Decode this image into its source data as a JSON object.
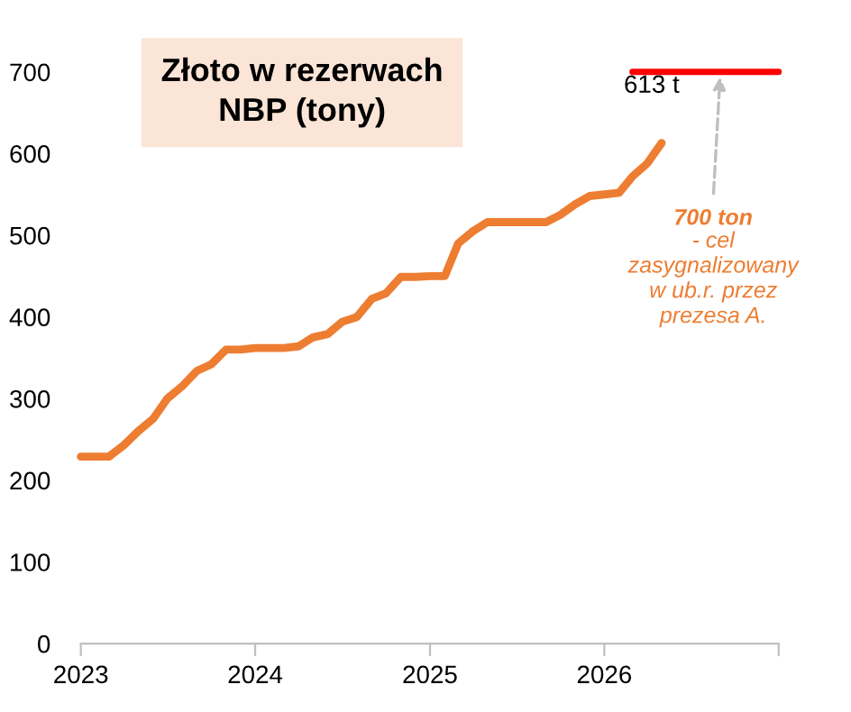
{
  "chart_data": {
    "type": "line",
    "title": "Złoto w rezerwach\nNBP (tony)",
    "x": [
      "2023-01",
      "2023-02",
      "2023-03",
      "2023-04",
      "2023-05",
      "2023-06",
      "2023-07",
      "2023-08",
      "2023-09",
      "2023-10",
      "2023-11",
      "2023-12",
      "2024-01",
      "2024-02",
      "2024-03",
      "2024-04",
      "2024-05",
      "2024-06",
      "2024-07",
      "2024-08",
      "2024-09",
      "2024-10",
      "2024-11",
      "2024-12",
      "2025-01",
      "2025-02",
      "2025-03",
      "2025-04",
      "2025-05",
      "2025-06",
      "2025-07",
      "2025-08",
      "2025-09",
      "2025-10",
      "2025-11",
      "2025-12",
      "2026-01",
      "2026-02",
      "2026-03",
      "2026-04",
      "2026-05"
    ],
    "series": [
      {
        "color": "#ed7d31",
        "values": [
          229,
          229,
          229,
          243,
          260,
          275,
          300,
          315,
          334,
          342,
          360,
          360,
          362,
          362,
          362,
          364,
          375,
          379,
          394,
          400,
          422,
          429,
          449,
          449,
          450,
          450,
          490,
          505,
          516,
          516,
          516,
          516,
          516,
          525,
          538,
          548,
          550,
          552,
          572,
          588,
          613
        ]
      },
      {
        "color": "#ff0000",
        "x": [
          "2026-03",
          "2027-01"
        ],
        "values": [
          700,
          700
        ]
      }
    ],
    "annotations": [
      {
        "text": "613 t",
        "x": "2026-05",
        "y": 613
      },
      {
        "text": "700 ton\n- cel\nzasygnalizowany\nw ub.r. przez\nprezesa A.",
        "x": "2026-09",
        "y": 700
      }
    ],
    "xlim": [
      "2023-01",
      "2027-01"
    ],
    "xticks": [
      {
        "value": "2023-01",
        "label": "2023"
      },
      {
        "value": "2024-01",
        "label": "2024"
      },
      {
        "value": "2025-01",
        "label": "2025"
      },
      {
        "value": "2026-01",
        "label": "2026"
      },
      {
        "value": "2027-01",
        "label": null
      }
    ],
    "ylim": [
      0,
      700
    ],
    "yticks": [
      0,
      100,
      200,
      300,
      400,
      500,
      600,
      700
    ],
    "grid": false,
    "legend": false,
    "marker": "none",
    "line_style": "solid"
  }
}
